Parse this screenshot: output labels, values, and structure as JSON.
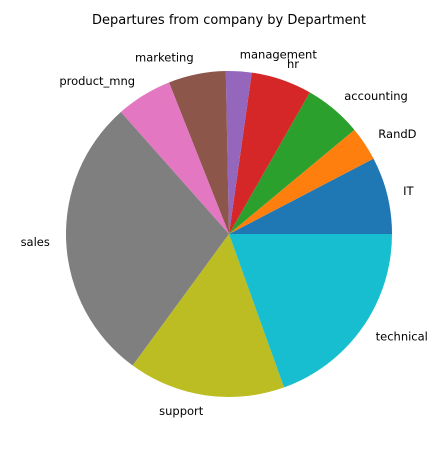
{
  "chart_data": {
    "type": "pie",
    "title": "Departures from company by Department",
    "start_angle_deg": 0,
    "direction": "counterclockwise",
    "slices": [
      {
        "label": "IT",
        "value": 273,
        "color": "#1f77b4"
      },
      {
        "label": "RandD",
        "value": 121,
        "color": "#ff7f0e"
      },
      {
        "label": "accounting",
        "value": 204,
        "color": "#2ca02c"
      },
      {
        "label": "hr",
        "value": 215,
        "color": "#d62728"
      },
      {
        "label": "management",
        "value": 91,
        "color": "#9467bd"
      },
      {
        "label": "marketing",
        "value": 203,
        "color": "#8c564b"
      },
      {
        "label": "product_mng",
        "value": 198,
        "color": "#e377c2"
      },
      {
        "label": "sales",
        "value": 1014,
        "color": "#7f7f7f"
      },
      {
        "label": "support",
        "value": 555,
        "color": "#bcbd22"
      },
      {
        "label": "technical",
        "value": 697,
        "color": "#17becf"
      }
    ]
  }
}
